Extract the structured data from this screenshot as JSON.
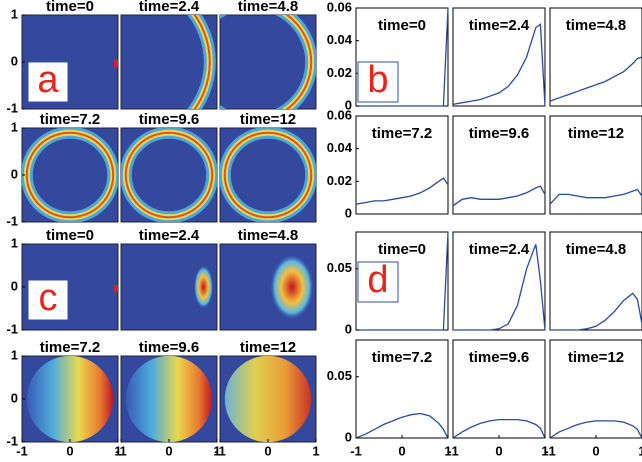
{
  "chart_data": [
    {
      "type": "heatmap",
      "label": "a",
      "titles": [
        "time=0",
        "time=2.4",
        "time=4.8",
        "time=7.2",
        "time=9.6",
        "time=12"
      ],
      "xlim": [
        -1,
        1
      ],
      "ylim": [
        -1,
        1
      ],
      "xticks": [
        -1,
        0,
        1
      ],
      "yticks": [
        -1,
        0,
        1
      ]
    },
    {
      "type": "line",
      "label": "b",
      "x": [
        -1,
        -0.8,
        -0.6,
        -0.4,
        -0.2,
        0,
        0.2,
        0.4,
        0.6,
        0.8,
        0.9,
        1
      ],
      "xlim": [
        -1,
        1
      ],
      "ylim": [
        0,
        0.06
      ],
      "yticks": [
        0,
        0.02,
        0.04,
        0.06
      ],
      "series": [
        {
          "name": "time=0",
          "color": "#2a4a9e",
          "values": [
            0,
            0,
            0,
            0,
            0,
            0,
            0,
            0,
            0,
            0,
            0,
            0.06
          ]
        },
        {
          "name": "time=2.4",
          "color": "#2a4a9e",
          "values": [
            0.001,
            0.002,
            0.003,
            0.004,
            0.006,
            0.008,
            0.012,
            0.019,
            0.03,
            0.048,
            0.05,
            0
          ]
        },
        {
          "name": "time=4.8",
          "color": "#2a4a9e",
          "values": [
            0.003,
            0.005,
            0.007,
            0.009,
            0.011,
            0.013,
            0.015,
            0.018,
            0.021,
            0.026,
            0.029,
            0.03
          ]
        },
        {
          "name": "time=7.2",
          "color": "#2a4a9e",
          "values": [
            0.006,
            0.007,
            0.008,
            0.008,
            0.009,
            0.01,
            0.011,
            0.013,
            0.016,
            0.02,
            0.022,
            0.018
          ]
        },
        {
          "name": "time=9.6",
          "color": "#2a4a9e",
          "values": [
            0.005,
            0.009,
            0.01,
            0.009,
            0.009,
            0.009,
            0.01,
            0.011,
            0.013,
            0.016,
            0.017,
            0.012
          ]
        },
        {
          "name": "time=12",
          "color": "#2a4a9e",
          "values": [
            0.006,
            0.012,
            0.012,
            0.011,
            0.01,
            0.01,
            0.01,
            0.011,
            0.012,
            0.014,
            0.015,
            0.011
          ]
        }
      ]
    },
    {
      "type": "heatmap",
      "label": "c",
      "titles": [
        "time=0",
        "time=2.4",
        "time=4.8",
        "time=7.2",
        "time=9.6",
        "time=12"
      ],
      "xlim": [
        -1,
        1
      ],
      "ylim": [
        -1,
        1
      ],
      "xticks": [
        -1,
        0,
        1
      ],
      "yticks": [
        -1,
        0,
        1
      ]
    },
    {
      "type": "line",
      "label": "d",
      "x": [
        -1,
        -0.8,
        -0.6,
        -0.4,
        -0.2,
        0,
        0.2,
        0.4,
        0.6,
        0.8,
        0.9,
        1
      ],
      "xlim": [
        -1,
        1
      ],
      "ylim": [
        0,
        0.08
      ],
      "yticks": [
        0,
        0.05
      ],
      "xticks": [
        -1,
        0,
        1
      ],
      "series": [
        {
          "name": "time=0",
          "color": "#2a4a9e",
          "values": [
            0,
            0,
            0,
            0,
            0,
            0,
            0,
            0,
            0,
            0,
            0,
            0.08
          ]
        },
        {
          "name": "time=2.4",
          "color": "#2a4a9e",
          "values": [
            0,
            0,
            0,
            0,
            0,
            0.001,
            0.005,
            0.02,
            0.05,
            0.07,
            0.04,
            0
          ]
        },
        {
          "name": "time=4.8",
          "color": "#2a4a9e",
          "values": [
            0,
            0,
            0,
            0,
            0.001,
            0.003,
            0.008,
            0.015,
            0.024,
            0.03,
            0.025,
            0.005
          ]
        },
        {
          "name": "time=7.2",
          "color": "#2a4a9e",
          "values": [
            0,
            0.003,
            0.007,
            0.011,
            0.014,
            0.017,
            0.019,
            0.02,
            0.018,
            0.012,
            0.007,
            0
          ]
        },
        {
          "name": "time=9.6",
          "color": "#2a4a9e",
          "values": [
            0,
            0.005,
            0.009,
            0.012,
            0.014,
            0.015,
            0.015,
            0.015,
            0.014,
            0.011,
            0.008,
            0
          ]
        },
        {
          "name": "time=12",
          "color": "#2a4a9e",
          "values": [
            0,
            0.005,
            0.008,
            0.011,
            0.013,
            0.014,
            0.014,
            0.014,
            0.013,
            0.01,
            0.007,
            0
          ]
        }
      ]
    }
  ]
}
